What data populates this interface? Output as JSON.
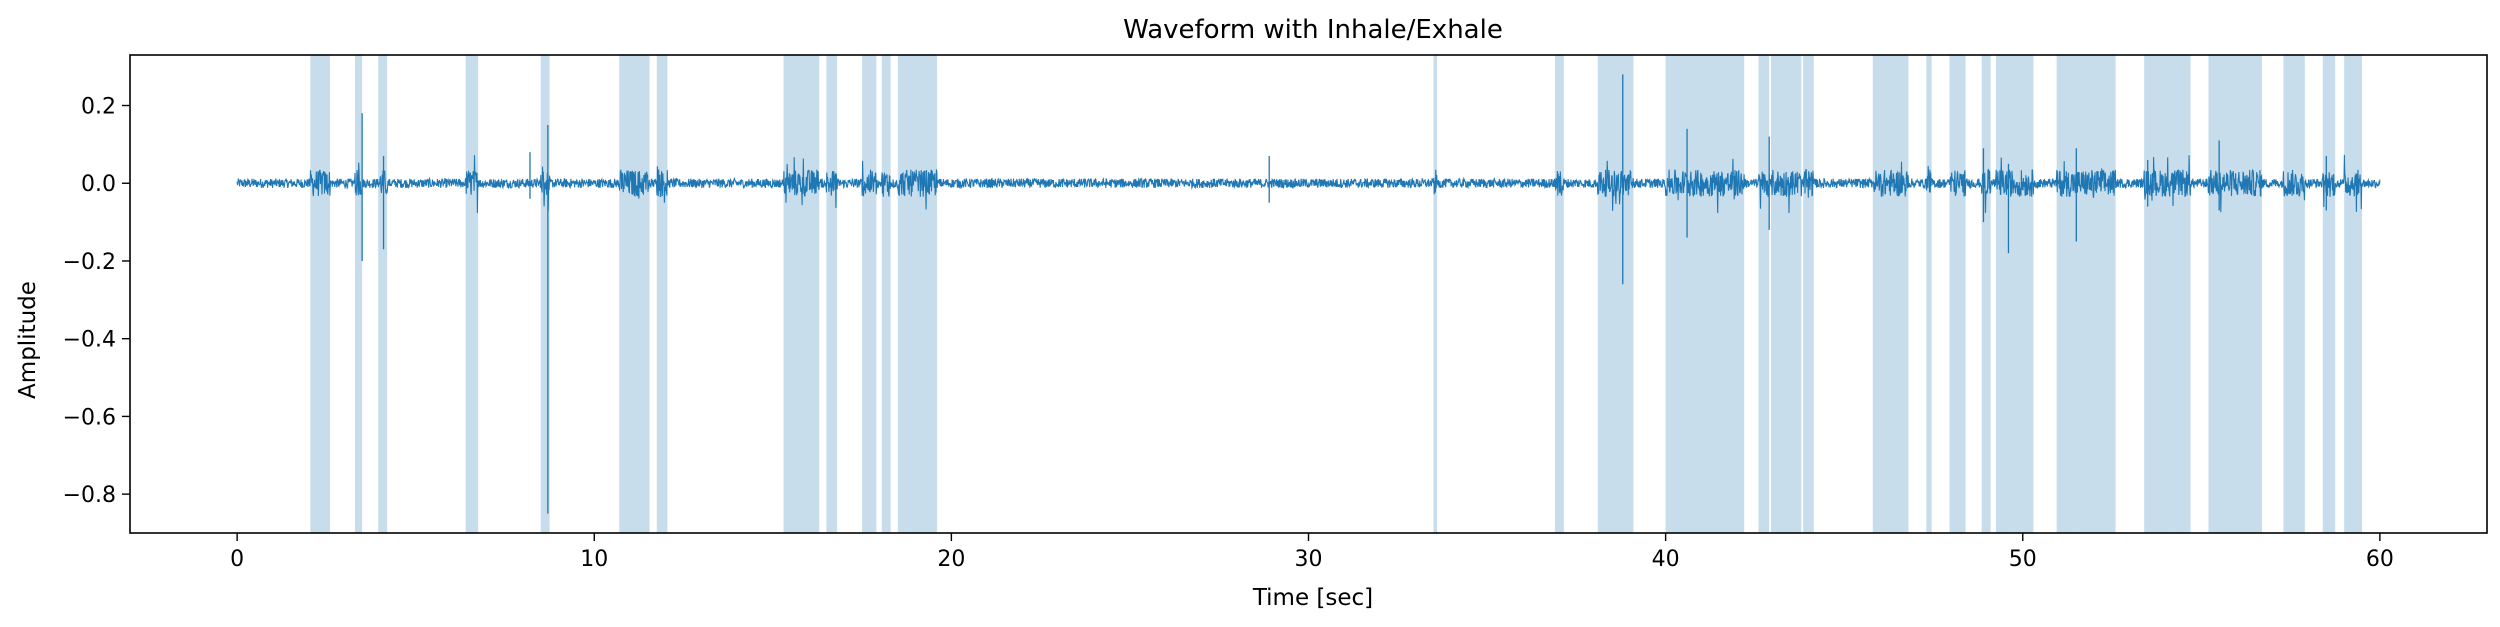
{
  "chart_data": {
    "type": "line",
    "title": "Waveform with Inhale/Exhale",
    "xlabel": "Time [sec]",
    "ylabel": "Amplitude",
    "xlim": [
      -3,
      63
    ],
    "ylim": [
      -0.9,
      0.33
    ],
    "xticks": [
      0,
      10,
      20,
      30,
      40,
      50,
      60
    ],
    "xtick_labels": [
      "0",
      "10",
      "20",
      "30",
      "40",
      "50",
      "60"
    ],
    "yticks": [
      0.2,
      0.0,
      -0.2,
      -0.4,
      -0.6,
      -0.8
    ],
    "ytick_labels": [
      "0.2",
      "0.0",
      "−0.2",
      "−0.4",
      "−0.6",
      "−0.8"
    ],
    "grid": false,
    "legend": false,
    "colors": {
      "waveform": "#1f77b4",
      "span": "#1f77b4"
    },
    "span_alpha": 0.25,
    "waveform": {
      "x_start": 0,
      "x_end": 60,
      "baseline_amplitude": 0.012,
      "active_amplitude": 0.035,
      "spikes": [
        {
          "x": 3.5,
          "y_max": 0.18,
          "y_min": -0.2
        },
        {
          "x": 4.1,
          "y_max": 0.07,
          "y_min": -0.17
        },
        {
          "x": 8.7,
          "y_max": 0.15,
          "y_min": -0.85
        },
        {
          "x": 8.2,
          "y_max": 0.08,
          "y_min": -0.04
        },
        {
          "x": 28.9,
          "y_max": 0.07,
          "y_min": -0.05
        },
        {
          "x": 38.8,
          "y_max": 0.28,
          "y_min": -0.26
        },
        {
          "x": 40.6,
          "y_max": 0.14,
          "y_min": -0.14
        },
        {
          "x": 42.9,
          "y_max": 0.12,
          "y_min": -0.12
        },
        {
          "x": 48.9,
          "y_max": 0.09,
          "y_min": -0.1
        },
        {
          "x": 49.6,
          "y_max": 0.05,
          "y_min": -0.18
        },
        {
          "x": 51.5,
          "y_max": 0.09,
          "y_min": -0.15
        },
        {
          "x": 53.5,
          "y_max": 0.06,
          "y_min": -0.06
        },
        {
          "x": 55.5,
          "y_max": 0.11,
          "y_min": -0.07
        },
        {
          "x": 58.5,
          "y_max": 0.07,
          "y_min": -0.07
        }
      ]
    },
    "spans": [
      [
        2.05,
        2.6
      ],
      [
        3.3,
        3.5
      ],
      [
        3.95,
        4.2
      ],
      [
        6.4,
        6.75
      ],
      [
        8.5,
        8.75
      ],
      [
        10.7,
        11.55
      ],
      [
        11.75,
        12.05
      ],
      [
        15.3,
        16.3
      ],
      [
        16.5,
        16.8
      ],
      [
        17.5,
        17.9
      ],
      [
        18.05,
        18.3
      ],
      [
        18.5,
        18.75
      ],
      [
        18.75,
        19.6
      ],
      [
        33.5,
        33.6
      ],
      [
        36.9,
        37.15
      ],
      [
        38.1,
        38.6
      ],
      [
        38.6,
        39.1
      ],
      [
        40.0,
        40.5
      ],
      [
        40.5,
        42.2
      ],
      [
        42.6,
        42.9
      ],
      [
        42.95,
        43.4
      ],
      [
        43.4,
        43.8
      ],
      [
        43.85,
        44.15
      ],
      [
        45.8,
        46.35
      ],
      [
        46.35,
        46.8
      ],
      [
        47.3,
        47.45
      ],
      [
        47.95,
        48.4
      ],
      [
        48.85,
        49.1
      ],
      [
        49.25,
        49.65
      ],
      [
        49.65,
        50.3
      ],
      [
        50.95,
        51.6
      ],
      [
        51.6,
        52.6
      ],
      [
        53.4,
        54.2
      ],
      [
        54.2,
        54.7
      ],
      [
        55.2,
        56.0
      ],
      [
        56.0,
        56.7
      ],
      [
        57.3,
        57.9
      ],
      [
        58.4,
        58.75
      ],
      [
        59.0,
        59.5
      ]
    ]
  }
}
